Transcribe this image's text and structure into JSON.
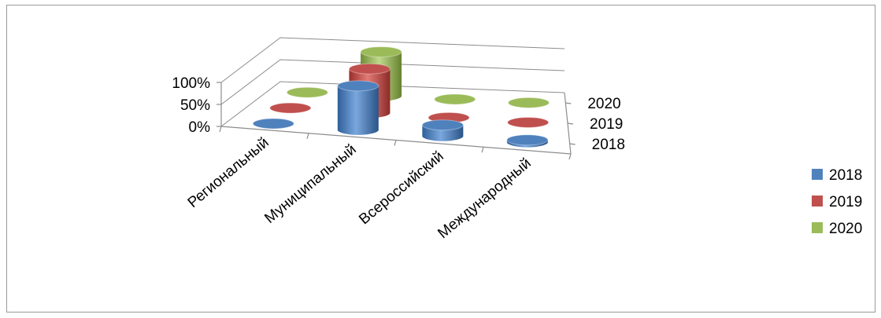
{
  "chart_data": {
    "type": "bar",
    "subtype": "3d-cylinder",
    "title": "",
    "categories": [
      "Региональный",
      "Муниципальный",
      "Всероссийский",
      "Международный"
    ],
    "y_tick_labels": [
      "0%",
      "50%",
      "100%"
    ],
    "ylim": [
      0,
      100
    ],
    "depth_labels": [
      "2018",
      "2019",
      "2020"
    ],
    "legend_position": "right",
    "series": [
      {
        "name": "2018",
        "color": "#4f81bd",
        "values": [
          0,
          100,
          25,
          5
        ]
      },
      {
        "name": "2019",
        "color": "#c0504d",
        "values": [
          0,
          100,
          0,
          0
        ]
      },
      {
        "name": "2020",
        "color": "#9bbb59",
        "values": [
          0,
          100,
          0,
          0
        ]
      }
    ]
  }
}
